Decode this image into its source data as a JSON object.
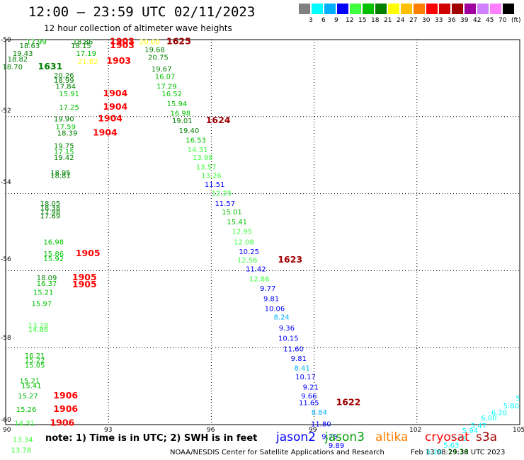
{
  "header": {
    "title": "12:00 — 23:59 UTC 02/11/2023",
    "subtitle": "12 hour collection of altimeter wave heights"
  },
  "legend": {
    "colors": [
      "#808080",
      "#00ffff",
      "#00b0ff",
      "#0000ff",
      "#40ff40",
      "#00c000",
      "#008000",
      "#ffff00",
      "#ffc000",
      "#ff8000",
      "#ff0000",
      "#d00000",
      "#a00000",
      "#a000a0",
      "#d080ff",
      "#ff80ff",
      "#000000"
    ],
    "labels": [
      "3",
      "6",
      "9",
      "12",
      "15",
      "18",
      "21",
      "24",
      "27",
      "30",
      "33",
      "36",
      "39",
      "42",
      "45",
      "70",
      "(ft)"
    ]
  },
  "map": {
    "lat_labels": [
      "-50",
      "-52",
      "-54",
      "-56",
      "-58",
      "-60"
    ],
    "lon_labels": [
      "90",
      "93",
      "96",
      "99",
      "102",
      "105"
    ],
    "observations": [
      {
        "t": "17.99",
        "lon": 90.9,
        "lat": -50.05,
        "c": "#00c000"
      },
      {
        "t": "18.86",
        "lon": 92.25,
        "lat": -50.05,
        "c": "#008000"
      },
      {
        "t": "1903",
        "lon": 93.4,
        "lat": -50.05,
        "c": "#ff0000",
        "big": true
      },
      {
        "t": "20.00",
        "lon": 94.2,
        "lat": -50.05,
        "c": "#ffff00"
      },
      {
        "t": "1625",
        "lon": 95.05,
        "lat": -50.05,
        "c": "#a00000",
        "big": true
      },
      {
        "t": "18.63",
        "lon": 90.7,
        "lat": -50.15,
        "c": "#008000"
      },
      {
        "t": "18.15",
        "lon": 92.2,
        "lat": -50.15,
        "c": "#008000"
      },
      {
        "t": "1903",
        "lon": 93.4,
        "lat": -50.15,
        "c": "#ff0000",
        "big": true
      },
      {
        "t": "19.43",
        "lon": 90.5,
        "lat": -50.35,
        "c": "#008000"
      },
      {
        "t": "17.19",
        "lon": 92.35,
        "lat": -50.35,
        "c": "#00c000"
      },
      {
        "t": "19.68",
        "lon": 94.35,
        "lat": -50.25,
        "c": "#008000"
      },
      {
        "t": "18.82",
        "lon": 90.35,
        "lat": -50.5,
        "c": "#008000"
      },
      {
        "t": "21.82",
        "lon": 92.4,
        "lat": -50.55,
        "c": "#ffff00"
      },
      {
        "t": "1903",
        "lon": 93.3,
        "lat": -50.55,
        "c": "#ff0000",
        "big": true
      },
      {
        "t": "20.75",
        "lon": 94.45,
        "lat": -50.45,
        "c": "#008000"
      },
      {
        "t": "18.70",
        "lon": 90.2,
        "lat": -50.7,
        "c": "#008000"
      },
      {
        "t": "1631",
        "lon": 91.3,
        "lat": -50.7,
        "c": "#008000",
        "big": true
      },
      {
        "t": "19.67",
        "lon": 94.55,
        "lat": -50.75,
        "c": "#008000"
      },
      {
        "t": "20.26",
        "lon": 91.7,
        "lat": -50.92,
        "c": "#008000"
      },
      {
        "t": "16.07",
        "lon": 94.65,
        "lat": -50.95,
        "c": "#00c000"
      },
      {
        "t": "18.99",
        "lon": 91.7,
        "lat": -51.05,
        "c": "#008000"
      },
      {
        "t": "17.84",
        "lon": 91.75,
        "lat": -51.2,
        "c": "#008000"
      },
      {
        "t": "17.29",
        "lon": 94.7,
        "lat": -51.2,
        "c": "#00c000"
      },
      {
        "t": "15.91",
        "lon": 91.85,
        "lat": -51.4,
        "c": "#00c000"
      },
      {
        "t": "1904",
        "lon": 93.2,
        "lat": -51.4,
        "c": "#ff0000",
        "big": true
      },
      {
        "t": "16.52",
        "lon": 94.85,
        "lat": -51.4,
        "c": "#00c000"
      },
      {
        "t": "15.94",
        "lon": 95.0,
        "lat": -51.65,
        "c": "#00c000"
      },
      {
        "t": "17.25",
        "lon": 91.85,
        "lat": -51.75,
        "c": "#00c000"
      },
      {
        "t": "1904",
        "lon": 93.2,
        "lat": -51.75,
        "c": "#ff0000",
        "big": true
      },
      {
        "t": "16.98",
        "lon": 95.1,
        "lat": -51.9,
        "c": "#00c000"
      },
      {
        "t": "19.90",
        "lon": 91.7,
        "lat": -52.05,
        "c": "#008000"
      },
      {
        "t": "1904",
        "lon": 93.05,
        "lat": -52.05,
        "c": "#ff0000",
        "big": true
      },
      {
        "t": "19.01",
        "lon": 95.15,
        "lat": -52.1,
        "c": "#008000"
      },
      {
        "t": "1624",
        "lon": 96.2,
        "lat": -52.1,
        "c": "#a00000",
        "big": true
      },
      {
        "t": "17.59",
        "lon": 91.75,
        "lat": -52.25,
        "c": "#00c000"
      },
      {
        "t": "18.39",
        "lon": 91.8,
        "lat": -52.42,
        "c": "#008000"
      },
      {
        "t": "1904",
        "lon": 92.9,
        "lat": -52.42,
        "c": "#ff0000",
        "big": true
      },
      {
        "t": "19.40",
        "lon": 95.35,
        "lat": -52.35,
        "c": "#008000"
      },
      {
        "t": "16.53",
        "lon": 95.55,
        "lat": -52.6,
        "c": "#00c000"
      },
      {
        "t": "19.75",
        "lon": 91.7,
        "lat": -52.75,
        "c": "#008000"
      },
      {
        "t": "14.31",
        "lon": 95.6,
        "lat": -52.85,
        "c": "#40ff40"
      },
      {
        "t": "17.15",
        "lon": 91.7,
        "lat": -52.9,
        "c": "#00c000"
      },
      {
        "t": "19.42",
        "lon": 91.7,
        "lat": -53.05,
        "c": "#008000"
      },
      {
        "t": "13.98",
        "lon": 95.75,
        "lat": -53.05,
        "c": "#40ff40"
      },
      {
        "t": "13.57",
        "lon": 95.85,
        "lat": -53.3,
        "c": "#40ff40"
      },
      {
        "t": "18.95",
        "lon": 91.6,
        "lat": -53.45,
        "c": "#008000"
      },
      {
        "t": "18.81",
        "lon": 91.6,
        "lat": -53.52,
        "c": "#008000"
      },
      {
        "t": "13.26",
        "lon": 96.0,
        "lat": -53.52,
        "c": "#40ff40"
      },
      {
        "t": "11.51",
        "lon": 96.1,
        "lat": -53.75,
        "c": "#0000ff"
      },
      {
        "t": "12.25",
        "lon": 96.3,
        "lat": -53.98,
        "c": "#40ff40"
      },
      {
        "t": "18.05",
        "lon": 91.3,
        "lat": -54.25,
        "c": "#008000"
      },
      {
        "t": "11.57",
        "lon": 96.4,
        "lat": -54.25,
        "c": "#0000ff"
      },
      {
        "t": "18.38",
        "lon": 91.3,
        "lat": -54.37,
        "c": "#008000"
      },
      {
        "t": "17.98",
        "lon": 91.3,
        "lat": -54.47,
        "c": "#008000"
      },
      {
        "t": "15.01",
        "lon": 96.6,
        "lat": -54.47,
        "c": "#00c000"
      },
      {
        "t": "17.69",
        "lon": 91.3,
        "lat": -54.57,
        "c": "#008000"
      },
      {
        "t": "15.41",
        "lon": 96.75,
        "lat": -54.72,
        "c": "#00c000"
      },
      {
        "t": "12.95",
        "lon": 96.9,
        "lat": -54.97,
        "c": "#40ff40"
      },
      {
        "t": "16.98",
        "lon": 91.4,
        "lat": -55.25,
        "c": "#00c000"
      },
      {
        "t": "12.08",
        "lon": 96.95,
        "lat": -55.25,
        "c": "#40ff40"
      },
      {
        "t": "10.25",
        "lon": 97.1,
        "lat": -55.5,
        "c": "#0000ff"
      },
      {
        "t": "15.86",
        "lon": 91.4,
        "lat": -55.55,
        "c": "#00c000"
      },
      {
        "t": "1905",
        "lon": 92.4,
        "lat": -55.55,
        "c": "#ff0000",
        "big": true
      },
      {
        "t": "15.92",
        "lon": 91.4,
        "lat": -55.68,
        "c": "#00c000"
      },
      {
        "t": "12.56",
        "lon": 97.05,
        "lat": -55.72,
        "c": "#40ff40"
      },
      {
        "t": "1623",
        "lon": 98.3,
        "lat": -55.72,
        "c": "#a00000",
        "big": true
      },
      {
        "t": "11.42",
        "lon": 97.3,
        "lat": -55.95,
        "c": "#0000ff"
      },
      {
        "t": "18.09",
        "lon": 91.2,
        "lat": -56.18,
        "c": "#008000"
      },
      {
        "t": "1905",
        "lon": 92.3,
        "lat": -56.18,
        "c": "#ff0000",
        "big": true
      },
      {
        "t": "12.86",
        "lon": 97.4,
        "lat": -56.2,
        "c": "#40ff40"
      },
      {
        "t": "16.37",
        "lon": 91.2,
        "lat": -56.32,
        "c": "#00c000"
      },
      {
        "t": "1905",
        "lon": 92.3,
        "lat": -56.36,
        "c": "#ff0000",
        "big": true
      },
      {
        "t": "9.77",
        "lon": 97.65,
        "lat": -56.45,
        "c": "#0000ff"
      },
      {
        "t": "15.21",
        "lon": 91.1,
        "lat": -56.55,
        "c": "#00c000"
      },
      {
        "t": "9.81",
        "lon": 97.75,
        "lat": -56.72,
        "c": "#0000ff"
      },
      {
        "t": "15.97",
        "lon": 91.05,
        "lat": -56.85,
        "c": "#00c000"
      },
      {
        "t": "10.06",
        "lon": 97.85,
        "lat": -56.98,
        "c": "#0000ff"
      },
      {
        "t": "8.24",
        "lon": 98.05,
        "lat": -57.2,
        "c": "#00b0ff"
      },
      {
        "t": "13.28",
        "lon": 90.95,
        "lat": -57.42,
        "c": "#40ff40"
      },
      {
        "t": "9.36",
        "lon": 98.2,
        "lat": -57.48,
        "c": "#0000ff"
      },
      {
        "t": "14.86",
        "lon": 90.95,
        "lat": -57.52,
        "c": "#40ff40"
      },
      {
        "t": "10.15",
        "lon": 98.25,
        "lat": -57.75,
        "c": "#0000ff"
      },
      {
        "t": "11.60",
        "lon": 98.4,
        "lat": -58.02,
        "c": "#0000ff"
      },
      {
        "t": "16.21",
        "lon": 90.85,
        "lat": -58.2,
        "c": "#00c000"
      },
      {
        "t": "9.81",
        "lon": 98.55,
        "lat": -58.27,
        "c": "#0000ff"
      },
      {
        "t": "15.22",
        "lon": 90.85,
        "lat": -58.32,
        "c": "#00c000"
      },
      {
        "t": "15.05",
        "lon": 90.85,
        "lat": -58.45,
        "c": "#00c000"
      },
      {
        "t": "8.41",
        "lon": 98.65,
        "lat": -58.52,
        "c": "#00b0ff"
      },
      {
        "t": "10.17",
        "lon": 98.75,
        "lat": -58.75,
        "c": "#0000ff"
      },
      {
        "t": "15.21",
        "lon": 90.7,
        "lat": -58.85,
        "c": "#00c000"
      },
      {
        "t": "15.41",
        "lon": 90.75,
        "lat": -58.98,
        "c": "#00c000"
      },
      {
        "t": "9.21",
        "lon": 98.9,
        "lat": -59.02,
        "c": "#0000ff"
      },
      {
        "t": "15.27",
        "lon": 90.65,
        "lat": -59.25,
        "c": "#00c000"
      },
      {
        "t": "1906",
        "lon": 91.75,
        "lat": -59.25,
        "c": "#ff0000",
        "big": true
      },
      {
        "t": "9.66",
        "lon": 98.85,
        "lat": -59.25,
        "c": "#0000ff"
      },
      {
        "t": "11.65",
        "lon": 98.85,
        "lat": -59.42,
        "c": "#0000ff"
      },
      {
        "t": "1622",
        "lon": 100.0,
        "lat": -59.42,
        "c": "#a00000",
        "big": true
      },
      {
        "t": "15.26",
        "lon": 90.6,
        "lat": -59.6,
        "c": "#00c000"
      },
      {
        "t": "1906",
        "lon": 91.75,
        "lat": -59.6,
        "c": "#ff0000",
        "big": true
      },
      {
        "t": "8.84",
        "lon": 99.15,
        "lat": -59.67,
        "c": "#00b0ff"
      },
      {
        "t": "14.31",
        "lon": 90.55,
        "lat": -59.95,
        "c": "#40ff40"
      },
      {
        "t": "1906",
        "lon": 91.65,
        "lat": -59.95,
        "c": "#ff0000",
        "big": true
      },
      {
        "t": "11.80",
        "lon": 99.2,
        "lat": -59.97,
        "c": "#0000ff"
      },
      {
        "t": "13.34",
        "lon": 90.5,
        "lat": -60.38,
        "c": "#40ff40"
      },
      {
        "t": "9.75",
        "lon": 99.45,
        "lat": -60.3,
        "c": "#0000ff"
      },
      {
        "t": "9.89",
        "lon": 99.65,
        "lat": -60.53,
        "c": "#0000ff"
      },
      {
        "t": "13.78",
        "lon": 90.45,
        "lat": -60.65,
        "c": "#40ff40"
      },
      {
        "t": "6.28",
        "lon": 102.5,
        "lat": -60.7,
        "c": "#00ffff"
      },
      {
        "t": "5.63",
        "lon": 103.0,
        "lat": -60.52,
        "c": "#00ffff"
      },
      {
        "t": "5.69",
        "lon": 103.25,
        "lat": -60.35,
        "c": "#00ffff"
      },
      {
        "t": "5.94",
        "lon": 103.55,
        "lat": -60.15,
        "c": "#00ffff"
      },
      {
        "t": "5.47",
        "lon": 103.8,
        "lat": -60.02,
        "c": "#00ffff"
      },
      {
        "t": "6.00",
        "lon": 104.1,
        "lat": -59.82,
        "c": "#00ffff"
      },
      {
        "t": "6.20",
        "lon": 104.4,
        "lat": -59.68,
        "c": "#00ffff"
      },
      {
        "t": "5.80",
        "lon": 104.75,
        "lat": -59.5,
        "c": "#00ffff"
      },
      {
        "t": "5",
        "lon": 104.95,
        "lat": -59.3,
        "c": "#00ffff"
      },
      {
        "t": "14.34",
        "lon": 103.2,
        "lat": -60.68,
        "c": "#00c000"
      }
    ]
  },
  "footer": {
    "note": "note: 1) Time is in UTC; 2) SWH is in feet",
    "satellites": [
      {
        "name": "jason2",
        "color": "#0000ff"
      },
      {
        "name": "jason3",
        "color": "#00a000"
      },
      {
        "name": "altika",
        "color": "#ff8000"
      },
      {
        "name": "cryosat",
        "color": "#ff0000"
      },
      {
        "name": "s3a",
        "color": "#a00000"
      }
    ],
    "credit": "NOAA/NESDIS Center for Satellite Applications and Research",
    "timestamp": "Feb 13 08:29:38 UTC 2023"
  }
}
